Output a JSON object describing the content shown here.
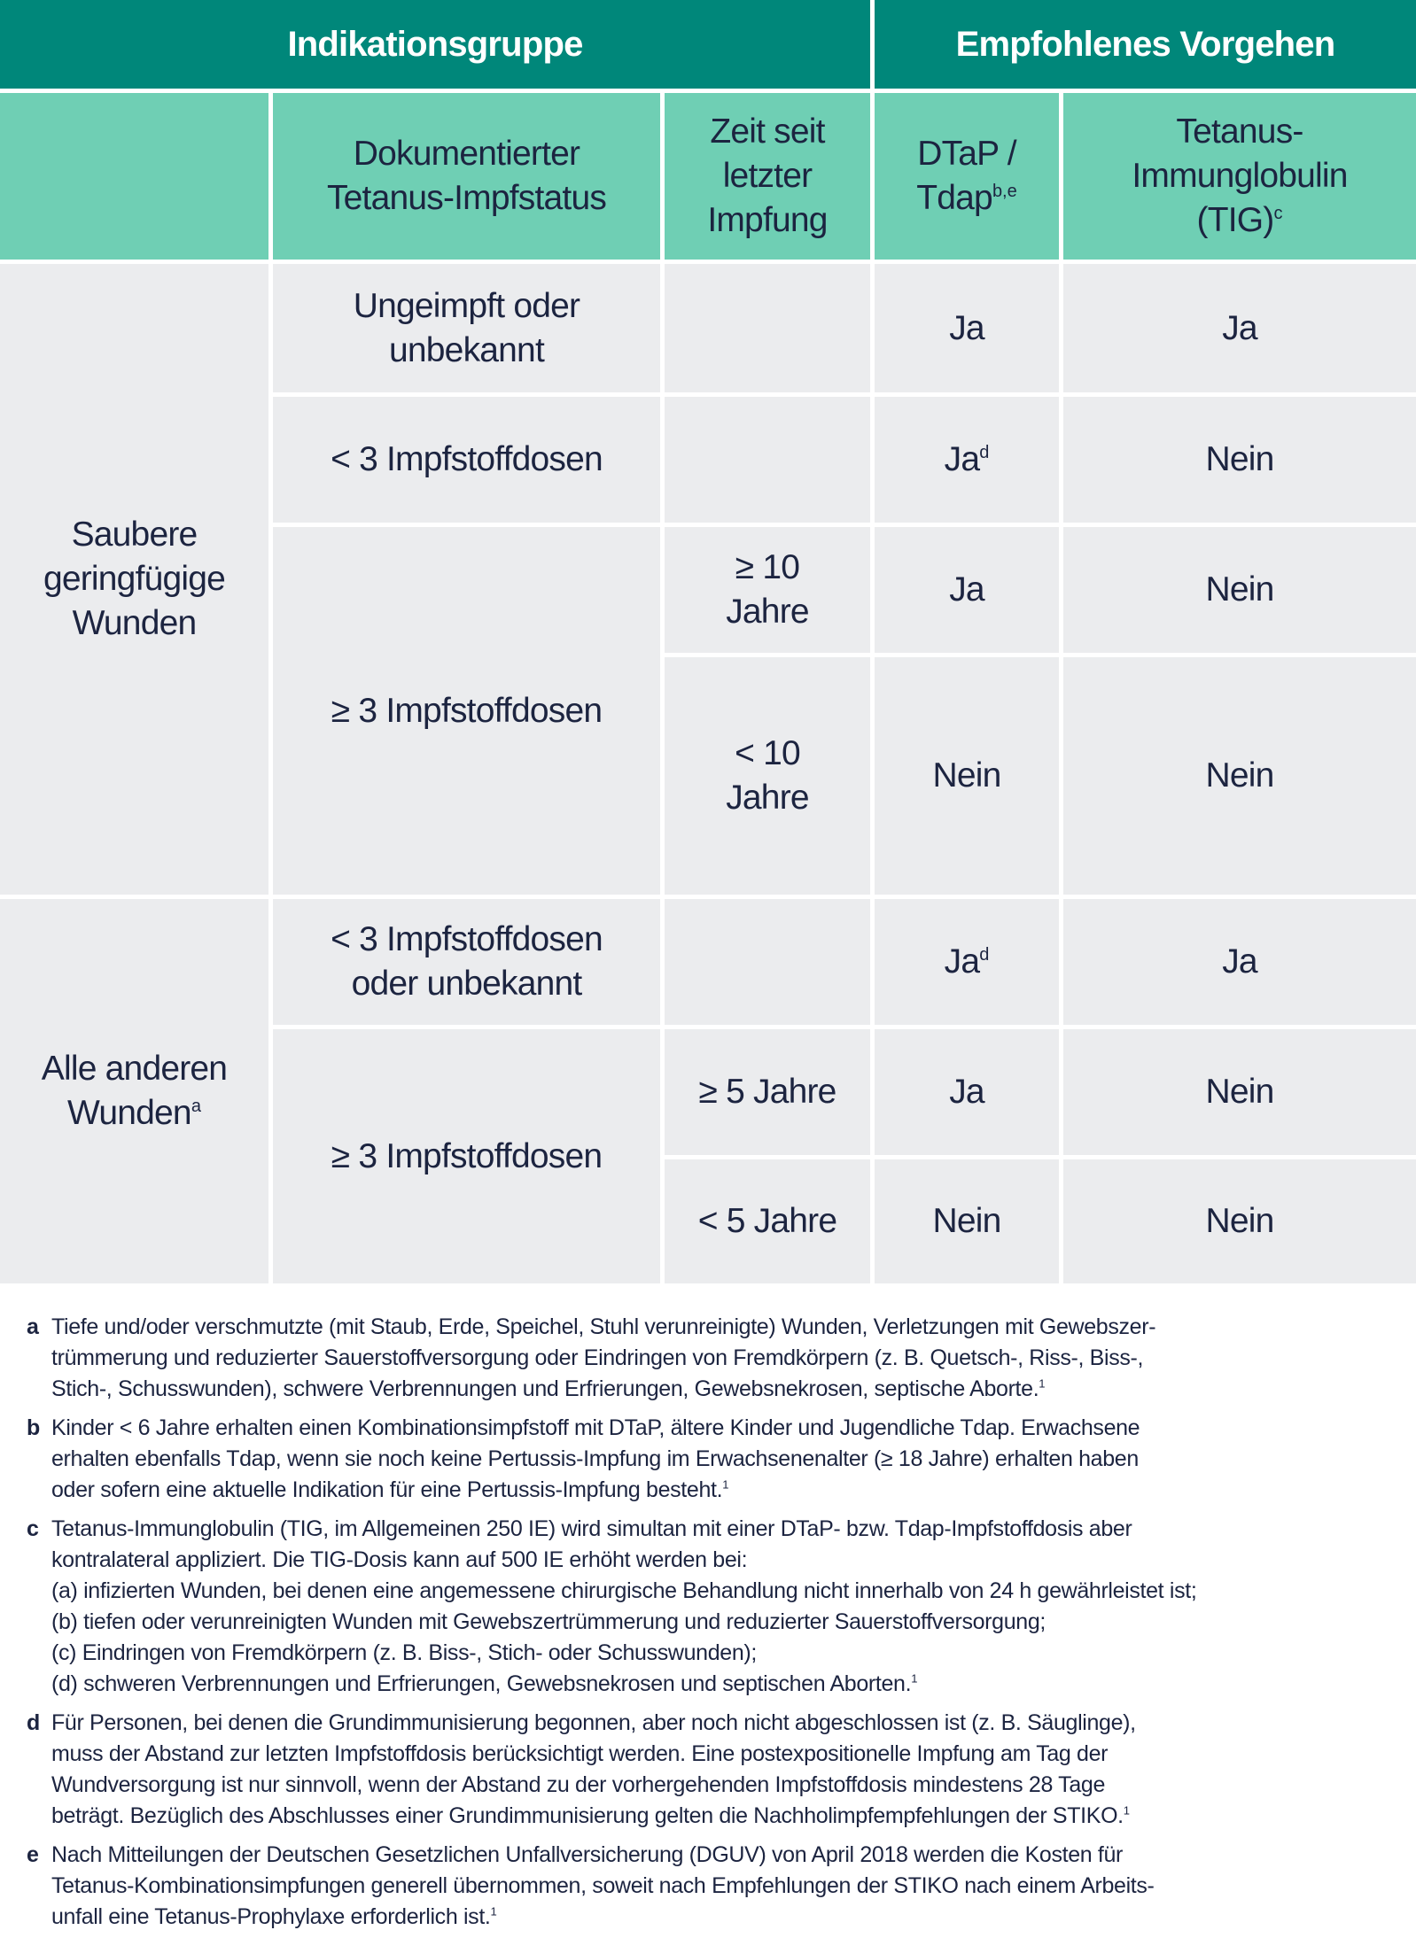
{
  "colors": {
    "header": "#00877a",
    "subheader": "#6fcfb4",
    "body": "#ebecee",
    "text": "#1c2440"
  },
  "header": {
    "group": "Indikationsgruppe",
    "recommendation": "Empfohlenes Vorgehen"
  },
  "subheader": {
    "status": "Dokumentierter Tetanus-Impfstatus",
    "time": "Zeit seit letzter Impfung",
    "dtap": "DTaP / Tdap",
    "dtap_sup": "b,e",
    "tig": "Tetanus-Immunglobulin (TIG)",
    "tig_sup": "c"
  },
  "groups": [
    {
      "label": "Saubere geringfügige Wunden",
      "sup": ""
    },
    {
      "label": "Alle anderen Wunden",
      "sup": "a"
    }
  ],
  "rows": [
    {
      "status": "Ungeimpft oder unbekannt",
      "time": "",
      "dtap": "Ja",
      "dtap_sup": "",
      "tig": "Ja"
    },
    {
      "status": "< 3 Impfstoffdosen",
      "time": "",
      "dtap": "Ja",
      "dtap_sup": "d",
      "tig": "Nein"
    },
    {
      "status": "≥ 3 Impfstoffdosen",
      "time": "≥ 10 Jahre",
      "dtap": "Ja",
      "dtap_sup": "",
      "tig": "Nein"
    },
    {
      "status": "",
      "time": "< 10 Jahre",
      "dtap": "Nein",
      "dtap_sup": "",
      "tig": "Nein"
    },
    {
      "status": "< 3 Impfstoffdosen oder unbekannt",
      "time": "",
      "dtap": "Ja",
      "dtap_sup": "d",
      "tig": "Ja"
    },
    {
      "status": "≥ 3 Impfstoffdosen",
      "time": "≥ 5 Jahre",
      "dtap": "Ja",
      "dtap_sup": "",
      "tig": "Nein"
    },
    {
      "status": "",
      "time": "< 5 Jahre",
      "dtap": "Nein",
      "dtap_sup": "",
      "tig": "Nein"
    }
  ],
  "footnotes": [
    {
      "label": "a",
      "lines": [
        "Tiefe und/oder verschmutzte (mit Staub, Erde, Speichel, Stuhl verunreinigte) Wunden, Verletzungen mit Gewebszer-",
        "trümmerung und reduzierter Sauerstoffversorgung oder Eindringen von Fremdkörpern (z. B. Quetsch-, Riss-, Biss-,",
        "Stich-, Schusswunden), schwere Verbrennungen und Erfrierungen, Gewebsnekrosen, septische Aborte."
      ],
      "ref": "1"
    },
    {
      "label": "b",
      "lines": [
        "Kinder < 6 Jahre erhalten einen Kombinationsimpfstoff mit DTaP, ältere Kinder und Jugendliche Tdap. Erwachsene",
        "erhalten ebenfalls Tdap, wenn sie noch keine Pertussis-Impfung im Erwachsenenalter (≥ 18 Jahre) erhalten haben",
        "oder sofern eine aktuelle Indikation für eine Pertussis-Impfung besteht."
      ],
      "ref": "1"
    },
    {
      "label": "c",
      "lines": [
        "Tetanus-Immunglobulin (TIG, im Allgemeinen 250 IE) wird simultan mit einer DTaP- bzw. Tdap-Impfstoffdosis aber",
        "kontralateral appliziert. Die TIG-Dosis kann auf 500 IE erhöht werden bei:",
        "(a) infizierten Wunden, bei denen eine angemessene chirurgische Behandlung nicht innerhalb von 24 h gewährleistet ist;",
        "(b) tiefen oder verunreinigten Wunden mit Gewebszertrümmerung und reduzierter Sauerstoffversorgung;",
        "(c) Eindringen von Fremdkörpern (z. B. Biss-, Stich- oder Schusswunden);",
        "(d) schweren Verbrennungen und Erfrierungen, Gewebsnekrosen und septischen Aborten."
      ],
      "ref": "1"
    },
    {
      "label": "d",
      "lines": [
        "Für Personen, bei denen die Grundimmunisierung begonnen, aber noch nicht abgeschlossen ist (z. B. Säuglinge),",
        "muss der Abstand zur letzten Impfstoffdosis berücksichtigt werden. Eine postexpositionelle Impfung am Tag der",
        "Wundversorgung ist nur sinnvoll, wenn der Abstand zu der vorhergehenden Impfstoffdosis mindestens 28 Tage",
        "beträgt. Bezüglich des Abschlusses einer Grundimmunisierung gelten die Nachholimpfempfehlungen der STIKO."
      ],
      "ref": "1"
    },
    {
      "label": "e",
      "lines": [
        "Nach Mitteilungen der Deutschen Gesetzlichen Unfallversicherung (DGUV) von April 2018 werden die Kosten für",
        "Tetanus-Kombinationsimpfungen generell übernommen, soweit nach Empfehlungen der STIKO nach einem Arbeits-",
        "unfall eine Tetanus-Prophylaxe erforderlich ist."
      ],
      "ref": "1"
    }
  ]
}
